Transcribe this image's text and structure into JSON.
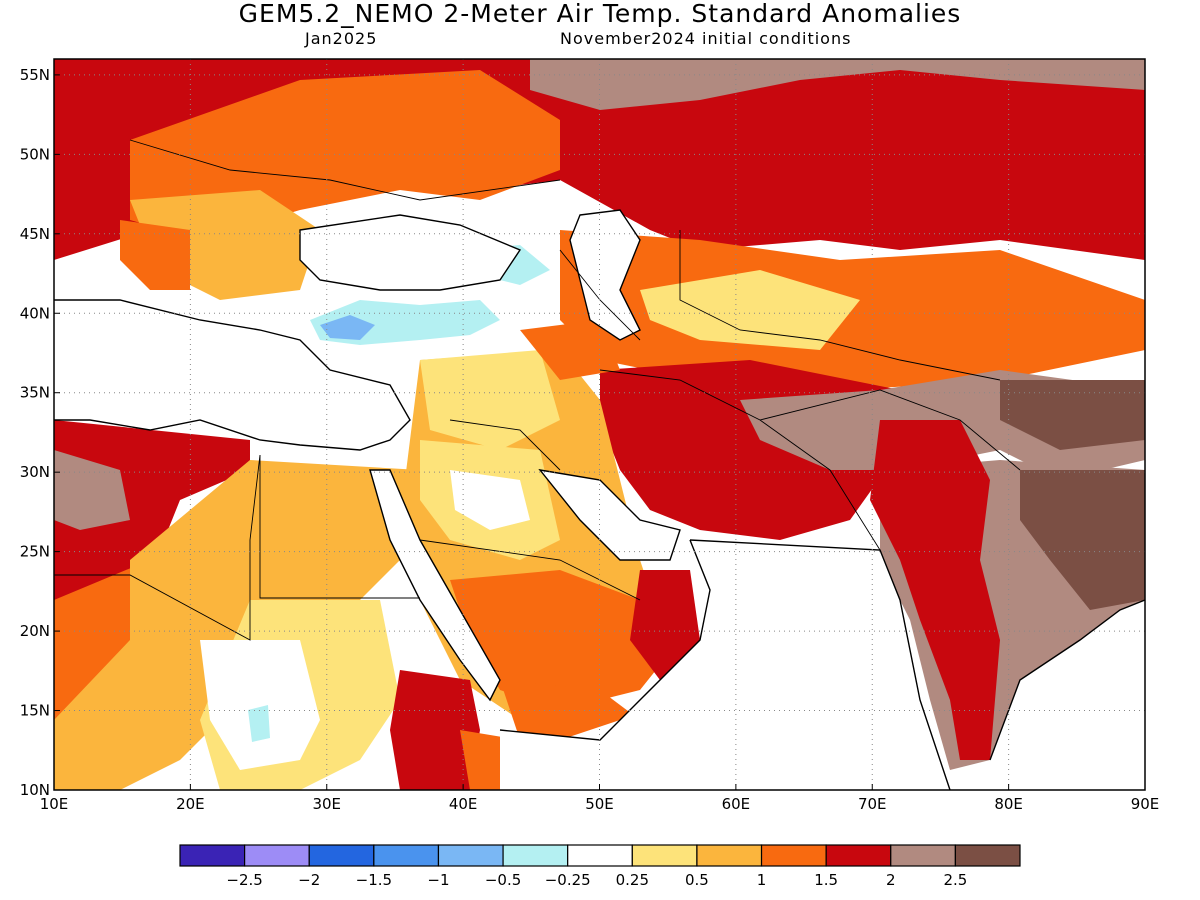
{
  "title": "GEM5.2_NEMO 2-Meter Air Temp. Standard Anomalies",
  "subtitle_left": "Jan2025",
  "subtitle_right": "November2024 initial conditions",
  "map": {
    "lon_range": [
      10,
      90
    ],
    "lat_range": [
      10,
      56
    ],
    "lon_ticks": [
      "10E",
      "20E",
      "30E",
      "40E",
      "50E",
      "60E",
      "70E",
      "80E",
      "90E"
    ],
    "lat_ticks": [
      "10N",
      "15N",
      "20N",
      "25N",
      "30N",
      "35N",
      "40N",
      "45N",
      "50N",
      "55N"
    ],
    "grid": true
  },
  "colorbar": {
    "colors": [
      "#3a23b5",
      "#9d8cf6",
      "#2366e0",
      "#4a93ee",
      "#7ab7f4",
      "#b4f0f2",
      "#ffffff",
      "#fde37a",
      "#fbb53d",
      "#f86a10",
      "#c8070e",
      "#b18a80",
      "#7b4f44"
    ],
    "labels": [
      "−2.5",
      "−2",
      "−1.5",
      "−1",
      "−0.5",
      "−0.25",
      "0.25",
      "0.5",
      "1",
      "1.5",
      "2",
      "2.5"
    ]
  }
}
